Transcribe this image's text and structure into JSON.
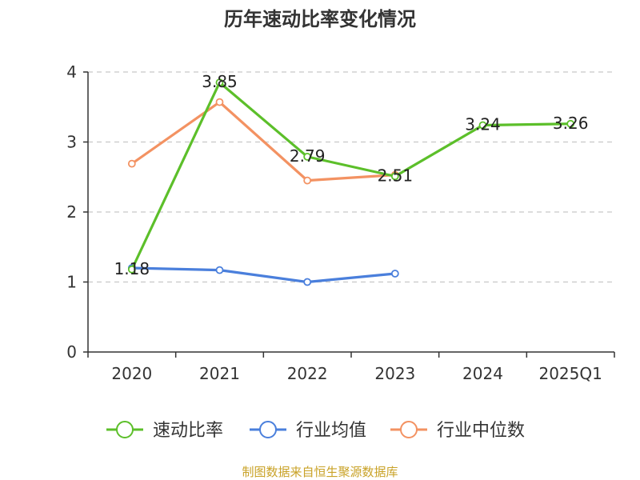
{
  "chart_data": {
    "type": "line",
    "title": "历年速动比率变化情况",
    "categories": [
      "2020",
      "2021",
      "2022",
      "2023",
      "2024",
      "2025Q1"
    ],
    "ylim": [
      0,
      4
    ],
    "yticks": [
      "0",
      "1",
      "2",
      "3",
      "4"
    ],
    "grid": true,
    "legend_position": "bottom",
    "series": [
      {
        "name": "速动比率",
        "color": "#5cbf2a",
        "values": [
          1.18,
          3.85,
          2.79,
          2.51,
          3.24,
          3.26
        ],
        "labels": [
          "1.18",
          "3.85",
          "2.79",
          "2.51",
          "3.24",
          "3.26"
        ]
      },
      {
        "name": "行业均值",
        "color": "#4a7fdc",
        "values": [
          1.2,
          1.17,
          1.0,
          1.12,
          null,
          null
        ]
      },
      {
        "name": "行业中位数",
        "color": "#f39262",
        "values": [
          2.69,
          3.57,
          2.45,
          2.53,
          null,
          null
        ]
      }
    ]
  },
  "source": "制图数据来自恒生聚源数据库"
}
